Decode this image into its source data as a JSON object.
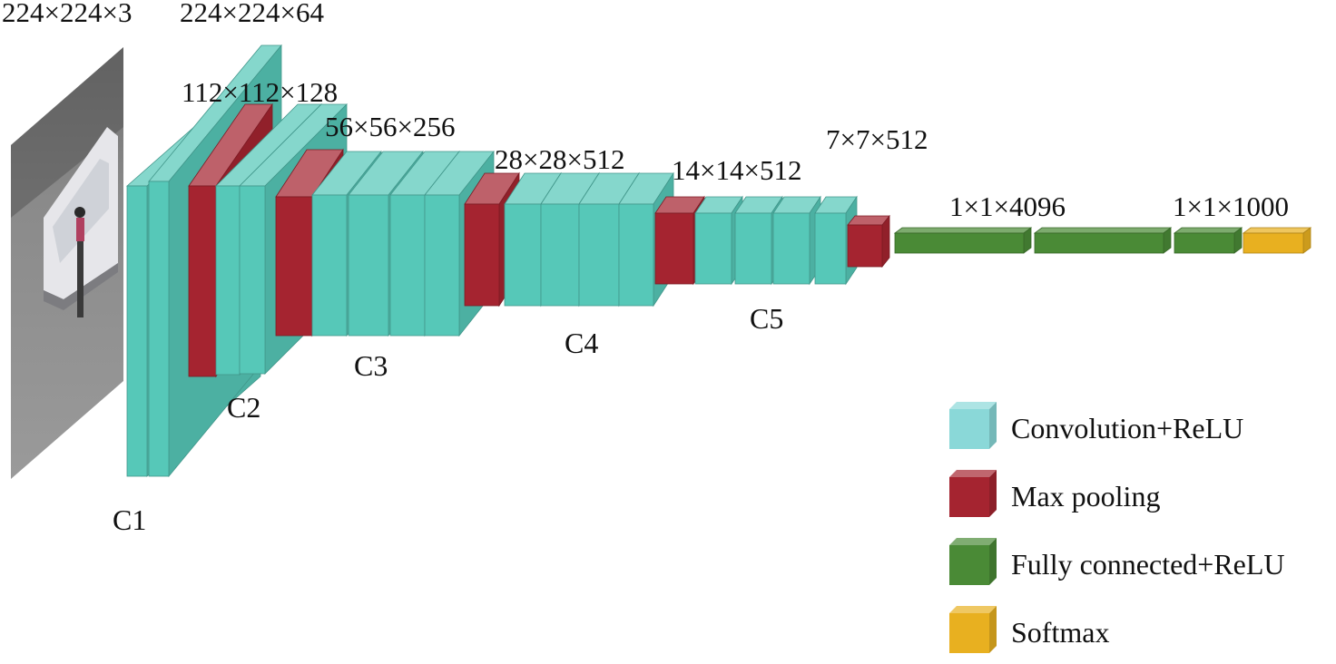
{
  "colors": {
    "conv": "#56c8b8",
    "pool": "#a52430",
    "fc": "#4a8a36",
    "softmax": "#e8b020",
    "conv_legend": "#8ad8d8"
  },
  "input_image": {
    "subject": "pedestrian-and-vehicle-photo"
  },
  "dimension_labels": [
    "224×224×3",
    "224×224×64",
    "112×112×128",
    "56×56×256",
    "28×28×512",
    "14×14×512",
    "7×7×512",
    "1×1×4096",
    "1×1×1000"
  ],
  "stage_labels": [
    "C1",
    "C2",
    "C3",
    "C4",
    "C5"
  ],
  "legend": [
    {
      "label": "Convolution+ReLU",
      "color_key": "conv_legend"
    },
    {
      "label": "Max pooling",
      "color_key": "pool"
    },
    {
      "label": "Fully connected+ReLU",
      "color_key": "fc"
    },
    {
      "label": "Softmax",
      "color_key": "softmax"
    }
  ],
  "layers": [
    {
      "kind": "conv",
      "stage": "C1"
    },
    {
      "kind": "conv",
      "stage": "C1"
    },
    {
      "kind": "pool",
      "stage": "C1"
    },
    {
      "kind": "conv",
      "stage": "C2"
    },
    {
      "kind": "conv",
      "stage": "C2"
    },
    {
      "kind": "pool",
      "stage": "C2"
    },
    {
      "kind": "conv",
      "stage": "C3"
    },
    {
      "kind": "conv",
      "stage": "C3"
    },
    {
      "kind": "conv",
      "stage": "C3"
    },
    {
      "kind": "conv",
      "stage": "C3"
    },
    {
      "kind": "pool",
      "stage": "C3"
    },
    {
      "kind": "conv",
      "stage": "C4"
    },
    {
      "kind": "conv",
      "stage": "C4"
    },
    {
      "kind": "conv",
      "stage": "C4"
    },
    {
      "kind": "conv",
      "stage": "C4"
    },
    {
      "kind": "pool",
      "stage": "C4"
    },
    {
      "kind": "conv",
      "stage": "C5"
    },
    {
      "kind": "conv",
      "stage": "C5"
    },
    {
      "kind": "conv",
      "stage": "C5"
    },
    {
      "kind": "conv",
      "stage": "C5"
    },
    {
      "kind": "pool",
      "stage": "C5"
    },
    {
      "kind": "fc"
    },
    {
      "kind": "fc"
    },
    {
      "kind": "fc"
    },
    {
      "kind": "softmax"
    }
  ]
}
